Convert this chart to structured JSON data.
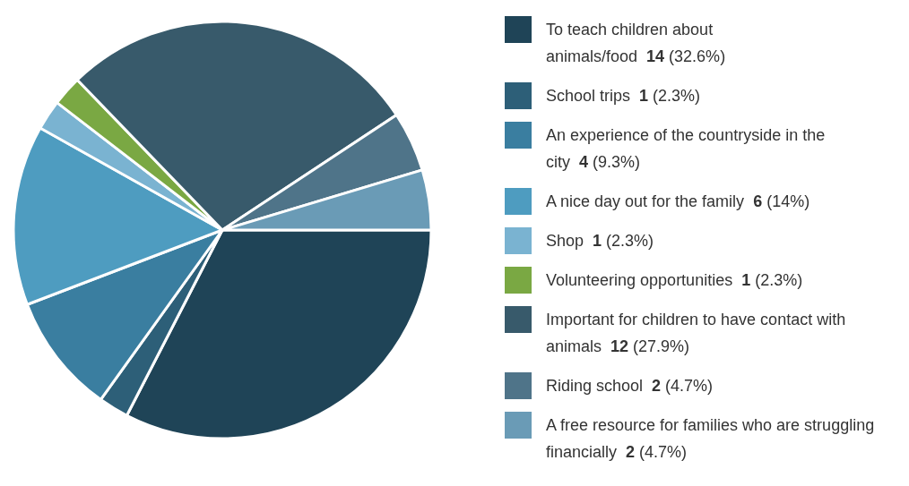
{
  "chart_data": {
    "type": "pie",
    "legend": "right",
    "categories": [
      "To teach children about animals/food",
      "School trips",
      "An experience of the countryside in the city",
      "A nice day out for the family",
      "Shop",
      "Volunteering opportunities",
      "Important for children to have contact with animals",
      "Riding school",
      "A free resource for families who are struggling financially"
    ],
    "values": [
      14,
      1,
      4,
      6,
      1,
      1,
      12,
      2,
      2
    ],
    "value_labels": [
      "14 (32.6%)",
      "1 (2.3%)",
      "4 (9.3%)",
      "6 (14%)",
      "1 (2.3%)",
      "1 (2.3%)",
      "12 (27.9%)",
      "2 (4.7%)",
      "2 (4.7%)"
    ],
    "colors": [
      "#1f4457",
      "#2d5f78",
      "#3a7ea0",
      "#4e9cc0",
      "#7ab3d1",
      "#7aa843",
      "#385a6b",
      "#4f7489",
      "#6a9bb6"
    ]
  }
}
